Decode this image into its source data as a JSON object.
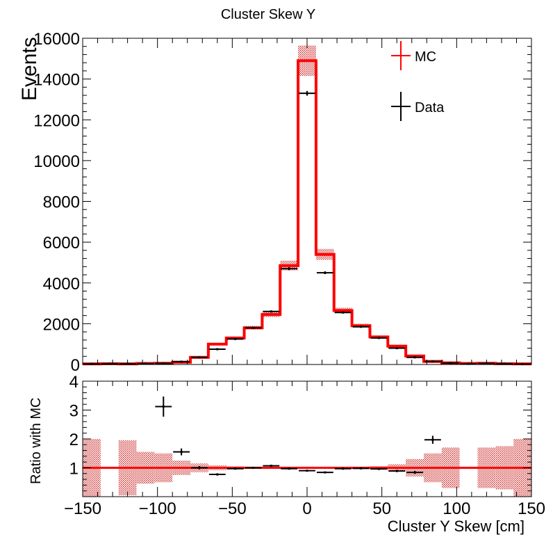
{
  "chart_data": [
    {
      "type": "histogram",
      "title": "Cluster Skew Y",
      "ylabel": "Events",
      "xlim": [
        -150,
        150
      ],
      "ylim": [
        0,
        16000
      ],
      "xticks": [
        -150,
        -100,
        -50,
        0,
        50,
        100,
        150
      ],
      "yticks": [
        0,
        2000,
        4000,
        6000,
        8000,
        10000,
        12000,
        14000,
        16000
      ],
      "ytick_labels": [
        "0",
        "2000",
        "4000",
        "6000",
        "8000",
        "10000",
        "12000",
        "14000",
        "16000"
      ],
      "bin_edges": [
        -150,
        -138,
        -126,
        -114,
        -102,
        -90,
        -78,
        -66,
        -54,
        -42,
        -30,
        -18,
        -6,
        6,
        18,
        30,
        42,
        54,
        66,
        78,
        90,
        102,
        114,
        126,
        138,
        150
      ],
      "series": [
        {
          "name": "MC",
          "color": "#ff0000",
          "values": [
            30,
            40,
            30,
            50,
            60,
            110,
            350,
            1000,
            1300,
            1800,
            2450,
            4850,
            14900,
            5400,
            2650,
            1900,
            1350,
            900,
            420,
            150,
            80,
            50,
            60,
            40,
            30
          ]
        },
        {
          "name": "Data",
          "color": "#000000",
          "values": [
            30,
            40,
            40,
            40,
            50,
            140,
            350,
            750,
            1250,
            1800,
            2600,
            4700,
            13300,
            4500,
            2550,
            1850,
            1300,
            800,
            350,
            150,
            70,
            30,
            50,
            40,
            20
          ]
        }
      ],
      "legend": "top-right"
    },
    {
      "type": "ratio",
      "xlabel": "Cluster Y Skew [cm]",
      "ylabel": "Ratio with MC",
      "xlim": [
        -150,
        150
      ],
      "ylim": [
        0,
        4
      ],
      "yticks": [
        1,
        2,
        3,
        4
      ],
      "reference_line": 1,
      "uncertainty_band": [
        2.0,
        1.0,
        1.95,
        1.55,
        1.5,
        1.25,
        1.15,
        1.08,
        1.05,
        1.04,
        1.03,
        1.02,
        1.02,
        1.02,
        1.03,
        1.04,
        1.06,
        1.12,
        1.3,
        1.5,
        1.7,
        1.0,
        1.7,
        1.75,
        2.0
      ],
      "points": [
        {
          "x": -96,
          "y": 3.12,
          "err": 0.35
        },
        {
          "x": -84,
          "y": 1.55,
          "err": 0.12
        },
        {
          "x": -72,
          "y": 1.0,
          "err": 0.06
        },
        {
          "x": -60,
          "y": 0.77,
          "err": 0.04
        },
        {
          "x": -48,
          "y": 0.97,
          "err": 0.03
        },
        {
          "x": -36,
          "y": 1.0,
          "err": 0.02
        },
        {
          "x": -24,
          "y": 1.07,
          "err": 0.02
        },
        {
          "x": -12,
          "y": 0.97,
          "err": 0.015
        },
        {
          "x": 0,
          "y": 0.9,
          "err": 0.01
        },
        {
          "x": 12,
          "y": 0.84,
          "err": 0.015
        },
        {
          "x": 24,
          "y": 0.97,
          "err": 0.02
        },
        {
          "x": 36,
          "y": 0.98,
          "err": 0.02
        },
        {
          "x": 48,
          "y": 0.96,
          "err": 0.03
        },
        {
          "x": 60,
          "y": 0.89,
          "err": 0.04
        },
        {
          "x": 72,
          "y": 0.84,
          "err": 0.05
        },
        {
          "x": 84,
          "y": 1.97,
          "err": 0.14
        }
      ]
    }
  ]
}
